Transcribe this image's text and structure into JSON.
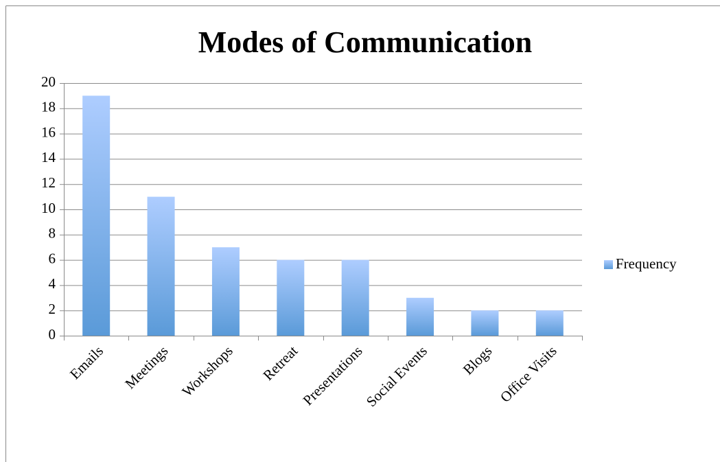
{
  "chart_data": {
    "type": "bar",
    "title": "Modes of Communication",
    "categories": [
      "Emails",
      "Meetings",
      "Workshops",
      "Retreat",
      "Presentations",
      "Social Events",
      "Blogs",
      "Office Visits"
    ],
    "series": [
      {
        "name": "Frequency",
        "color": "#5b9bd5",
        "values": [
          19,
          11,
          7,
          6,
          6,
          3,
          2,
          2
        ]
      }
    ],
    "ylim": [
      0,
      20
    ],
    "yticks": [
      0,
      2,
      4,
      6,
      8,
      10,
      12,
      14,
      16,
      18,
      20
    ],
    "grid": true,
    "legend": "right"
  }
}
